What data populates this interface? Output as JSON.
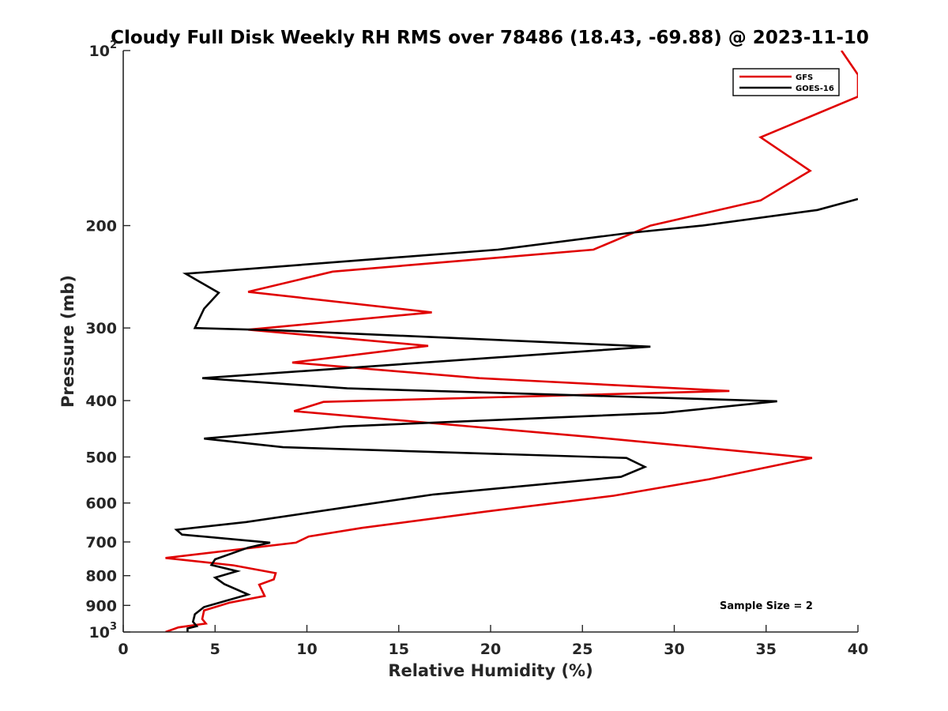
{
  "chart_data": {
    "type": "line",
    "title": "Cloudy Full Disk Weekly RH RMS over 78486 (18.43, -69.88) @ 2023-11-10",
    "xlabel": "Relative Humidity (%)",
    "ylabel": "Pressure (mb)",
    "xlim": [
      0,
      40
    ],
    "ylim": [
      100,
      1000
    ],
    "yscale": "log",
    "y_reversed": true,
    "grid": false,
    "legend_position": "top-right",
    "x_ticks": [
      {
        "value": 0,
        "label": "0"
      },
      {
        "value": 5,
        "label": "5"
      },
      {
        "value": 10,
        "label": "10"
      },
      {
        "value": 15,
        "label": "15"
      },
      {
        "value": 20,
        "label": "20"
      },
      {
        "value": 25,
        "label": "25"
      },
      {
        "value": 30,
        "label": "30"
      },
      {
        "value": 35,
        "label": "35"
      },
      {
        "value": 40,
        "label": "40"
      }
    ],
    "y_ticks": [
      {
        "value": 100,
        "base": "10",
        "exp": "2"
      },
      {
        "value": 200,
        "base": "200",
        "exp": ""
      },
      {
        "value": 300,
        "base": "300",
        "exp": ""
      },
      {
        "value": 400,
        "base": "400",
        "exp": ""
      },
      {
        "value": 500,
        "base": "500",
        "exp": ""
      },
      {
        "value": 600,
        "base": "600",
        "exp": ""
      },
      {
        "value": 700,
        "base": "700",
        "exp": ""
      },
      {
        "value": 800,
        "base": "800",
        "exp": ""
      },
      {
        "value": 900,
        "base": "900",
        "exp": ""
      },
      {
        "value": 1000,
        "base": "10",
        "exp": "3"
      }
    ],
    "annotation": "Sample Size = 2",
    "series": [
      {
        "name": "GFS",
        "color": "#e00000",
        "points": [
          {
            "x": 39.1,
            "p": 100
          },
          {
            "x": 40.0,
            "p": 110
          },
          {
            "x": 40.0,
            "p": 120
          },
          {
            "x": 34.7,
            "p": 141
          },
          {
            "x": 37.4,
            "p": 161
          },
          {
            "x": 34.7,
            "p": 181
          },
          {
            "x": 28.7,
            "p": 200
          },
          {
            "x": 25.6,
            "p": 220
          },
          {
            "x": 11.4,
            "p": 240
          },
          {
            "x": 6.8,
            "p": 260
          },
          {
            "x": 16.8,
            "p": 282
          },
          {
            "x": 6.8,
            "p": 302
          },
          {
            "x": 16.6,
            "p": 322
          },
          {
            "x": 9.2,
            "p": 344
          },
          {
            "x": 19.4,
            "p": 366
          },
          {
            "x": 33.0,
            "p": 385
          },
          {
            "x": 10.9,
            "p": 402
          },
          {
            "x": 9.3,
            "p": 417
          },
          {
            "x": 25.5,
            "p": 462
          },
          {
            "x": 37.5,
            "p": 502
          },
          {
            "x": 31.9,
            "p": 546
          },
          {
            "x": 26.7,
            "p": 583
          },
          {
            "x": 19.7,
            "p": 621
          },
          {
            "x": 13.0,
            "p": 662
          },
          {
            "x": 10.1,
            "p": 685
          },
          {
            "x": 9.4,
            "p": 702
          },
          {
            "x": 2.3,
            "p": 746
          },
          {
            "x": 6.0,
            "p": 768
          },
          {
            "x": 8.3,
            "p": 792
          },
          {
            "x": 8.2,
            "p": 812
          },
          {
            "x": 7.4,
            "p": 829
          },
          {
            "x": 7.7,
            "p": 867
          },
          {
            "x": 5.8,
            "p": 890
          },
          {
            "x": 4.4,
            "p": 918
          },
          {
            "x": 4.3,
            "p": 950
          },
          {
            "x": 4.5,
            "p": 967
          },
          {
            "x": 3.0,
            "p": 982
          },
          {
            "x": 2.3,
            "p": 1000
          }
        ]
      },
      {
        "name": "GOES-16",
        "color": "#000000",
        "points": [
          {
            "x": 40.0,
            "p": 180
          },
          {
            "x": 37.8,
            "p": 188
          },
          {
            "x": 31.5,
            "p": 200
          },
          {
            "x": 27.5,
            "p": 206
          },
          {
            "x": 20.4,
            "p": 220
          },
          {
            "x": 3.4,
            "p": 242
          },
          {
            "x": 5.2,
            "p": 261
          },
          {
            "x": 4.4,
            "p": 278
          },
          {
            "x": 3.9,
            "p": 300
          },
          {
            "x": 8.6,
            "p": 303
          },
          {
            "x": 28.7,
            "p": 323
          },
          {
            "x": 4.3,
            "p": 366
          },
          {
            "x": 12.2,
            "p": 381
          },
          {
            "x": 35.6,
            "p": 401
          },
          {
            "x": 29.4,
            "p": 420
          },
          {
            "x": 12.0,
            "p": 443
          },
          {
            "x": 4.4,
            "p": 465
          },
          {
            "x": 8.7,
            "p": 481
          },
          {
            "x": 27.4,
            "p": 502
          },
          {
            "x": 28.4,
            "p": 520
          },
          {
            "x": 27.1,
            "p": 541
          },
          {
            "x": 16.9,
            "p": 580
          },
          {
            "x": 13.1,
            "p": 604
          },
          {
            "x": 6.7,
            "p": 647
          },
          {
            "x": 2.9,
            "p": 667
          },
          {
            "x": 3.2,
            "p": 680
          },
          {
            "x": 8.0,
            "p": 702
          },
          {
            "x": 6.8,
            "p": 716
          },
          {
            "x": 5.0,
            "p": 750
          },
          {
            "x": 4.8,
            "p": 767
          },
          {
            "x": 6.2,
            "p": 786
          },
          {
            "x": 5.0,
            "p": 806
          },
          {
            "x": 5.5,
            "p": 827
          },
          {
            "x": 6.8,
            "p": 862
          },
          {
            "x": 4.4,
            "p": 906
          },
          {
            "x": 3.9,
            "p": 932
          },
          {
            "x": 3.8,
            "p": 960
          },
          {
            "x": 4.0,
            "p": 977
          },
          {
            "x": 3.5,
            "p": 986
          },
          {
            "x": 3.5,
            "p": 1000
          }
        ]
      }
    ]
  }
}
